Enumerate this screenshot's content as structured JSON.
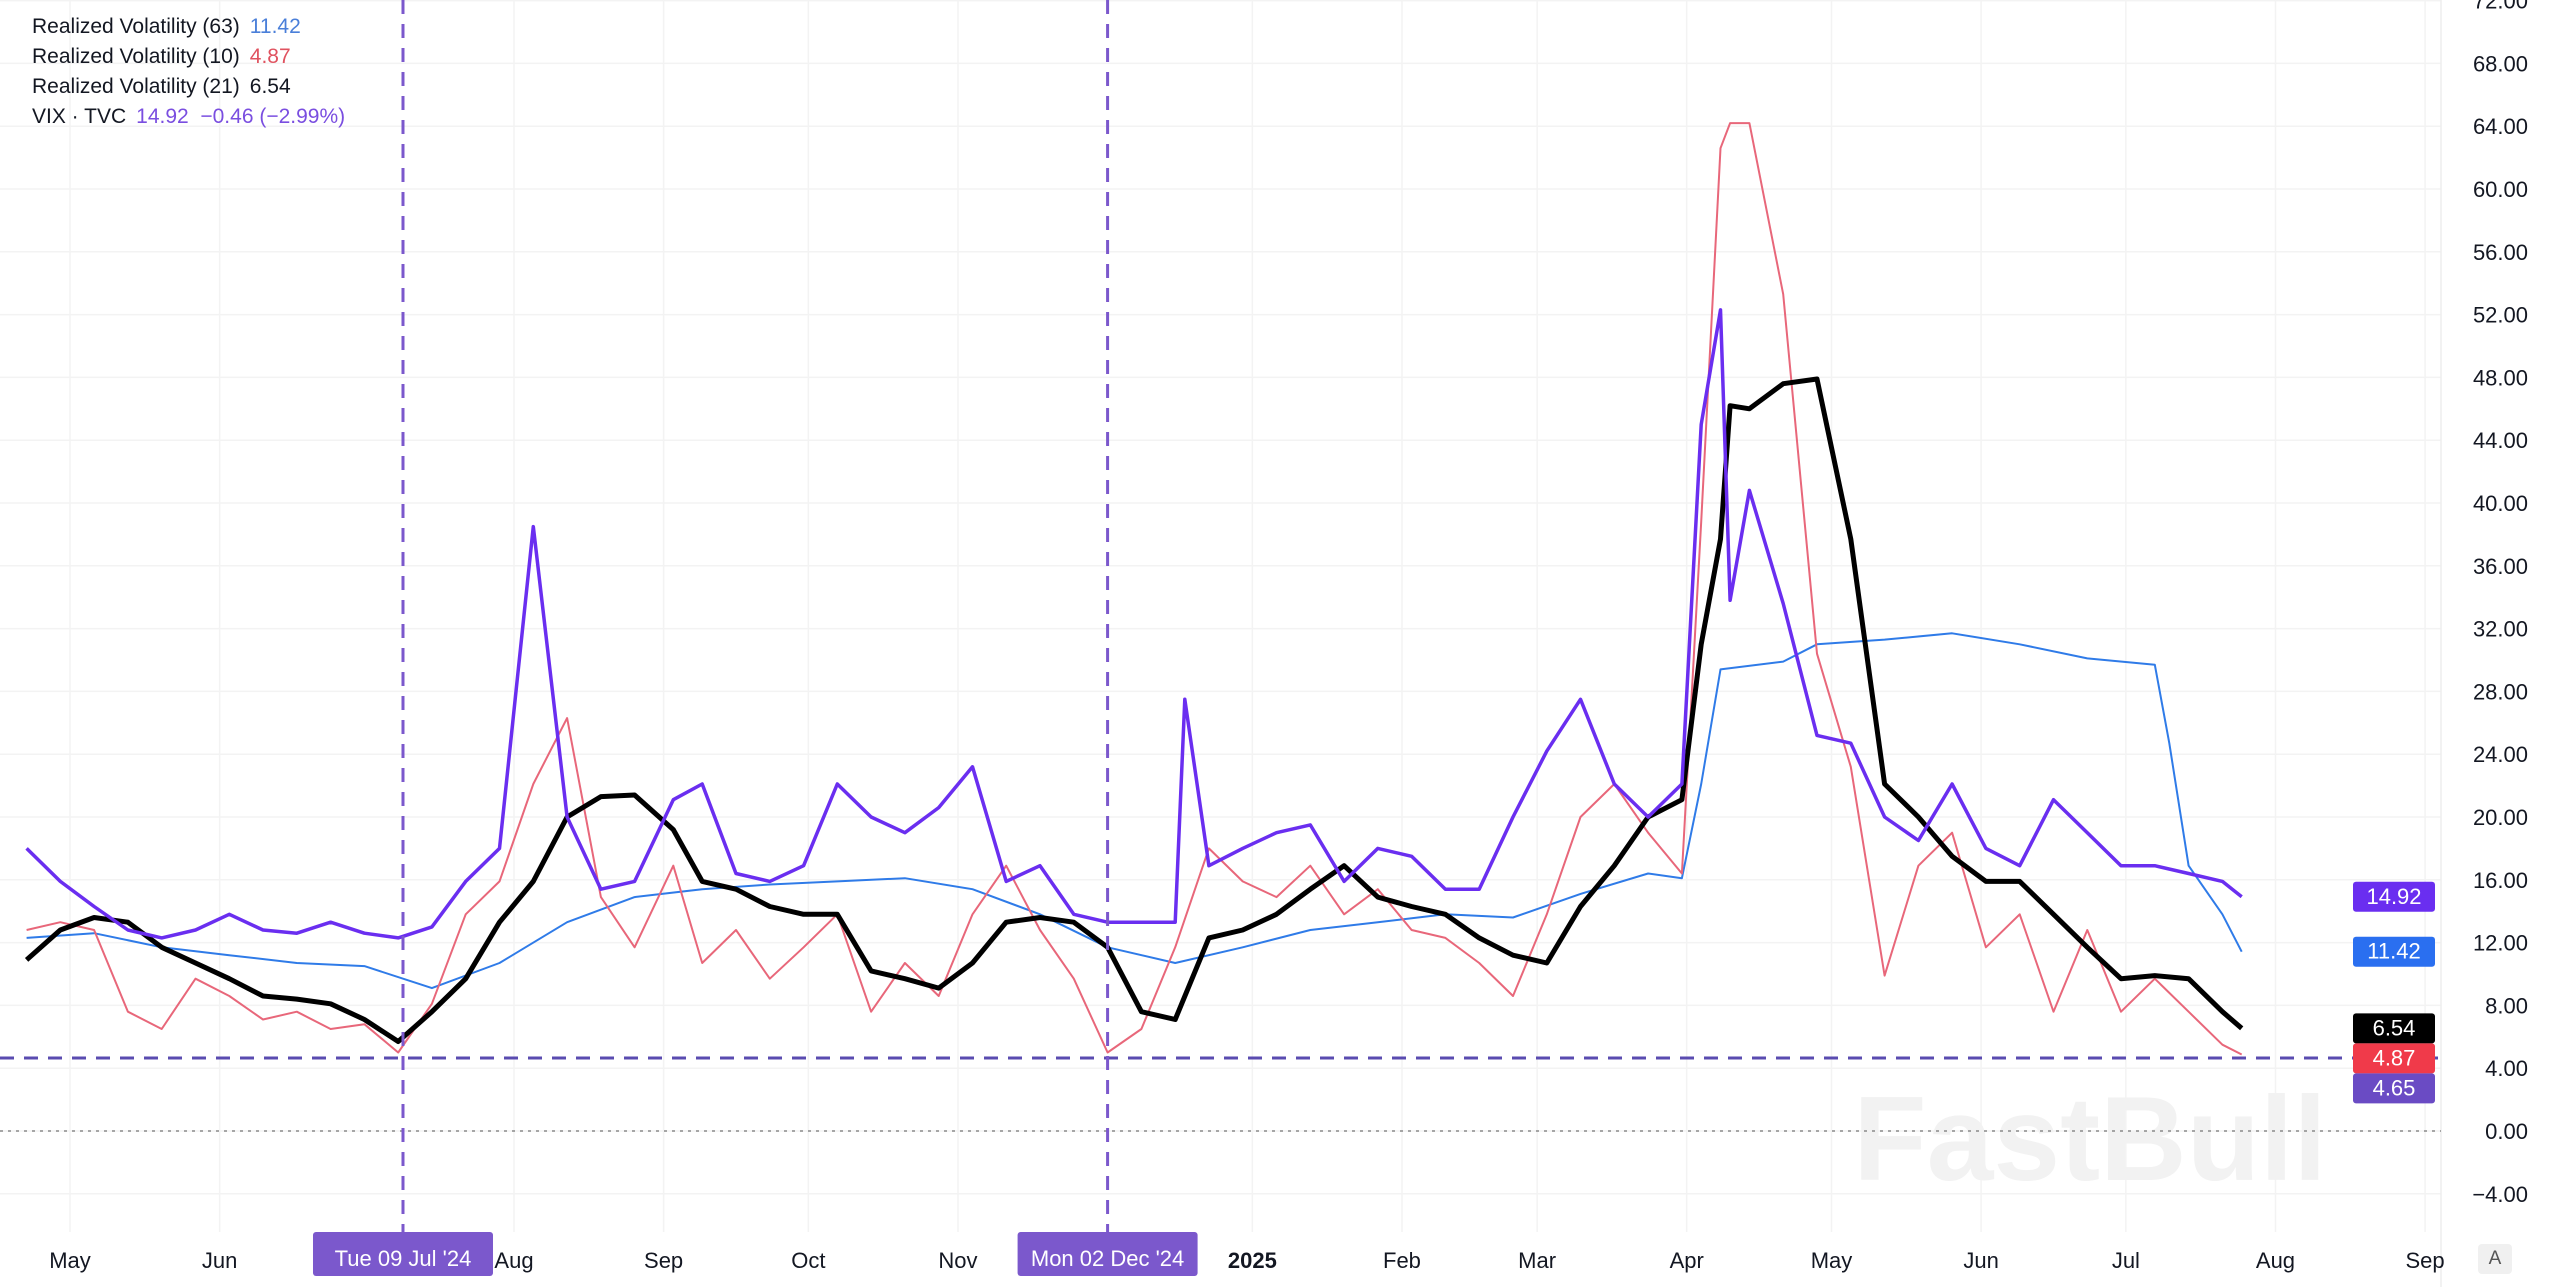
{
  "chart_data": {
    "type": "line",
    "y_axis": {
      "position": "right",
      "range": [
        -4,
        72
      ],
      "ticks": [
        72,
        68,
        64,
        60,
        56,
        52,
        48,
        44,
        40,
        36,
        32,
        28,
        24,
        20,
        16,
        12,
        8,
        4,
        0,
        -4
      ]
    },
    "x_axis": {
      "range": [
        "2024-04-20",
        "2025-09-10"
      ],
      "ticks": [
        {
          "label": "May",
          "date": "2024-05-01"
        },
        {
          "label": "Jun",
          "date": "2024-06-01"
        },
        {
          "label": "Aug",
          "date": "2024-08-01"
        },
        {
          "label": "Sep",
          "date": "2024-09-01"
        },
        {
          "label": "Oct",
          "date": "2024-10-01"
        },
        {
          "label": "Nov",
          "date": "2024-11-01"
        },
        {
          "label": "2025",
          "date": "2025-01-01",
          "bold": true
        },
        {
          "label": "Feb",
          "date": "2025-02-01"
        },
        {
          "label": "Mar",
          "date": "2025-03-01"
        },
        {
          "label": "Apr",
          "date": "2025-04-01"
        },
        {
          "label": "May",
          "date": "2025-05-01"
        },
        {
          "label": "Jun",
          "date": "2025-06-01"
        },
        {
          "label": "Jul",
          "date": "2025-07-01"
        },
        {
          "label": "Aug",
          "date": "2025-08-01"
        },
        {
          "label": "Sep",
          "date": "2025-09-01"
        }
      ]
    },
    "grid": true,
    "legend": "top-left",
    "dates": [
      "2024-04-22",
      "2024-04-29",
      "2024-05-06",
      "2024-05-13",
      "2024-05-20",
      "2024-05-27",
      "2024-06-03",
      "2024-06-10",
      "2024-06-17",
      "2024-06-24",
      "2024-07-01",
      "2024-07-08",
      "2024-07-15",
      "2024-07-22",
      "2024-07-29",
      "2024-08-05",
      "2024-08-12",
      "2024-08-19",
      "2024-08-26",
      "2024-09-03",
      "2024-09-09",
      "2024-09-16",
      "2024-09-23",
      "2024-09-30",
      "2024-10-07",
      "2024-10-14",
      "2024-10-21",
      "2024-10-28",
      "2024-11-04",
      "2024-11-11",
      "2024-11-18",
      "2024-11-25",
      "2024-12-02",
      "2024-12-09",
      "2024-12-16",
      "2024-12-23",
      "2024-12-30",
      "2025-01-06",
      "2025-01-13",
      "2025-01-20",
      "2025-01-27",
      "2025-02-03",
      "2025-02-10",
      "2025-02-17",
      "2025-02-24",
      "2025-03-03",
      "2025-03-10",
      "2025-03-17",
      "2025-03-24",
      "2025-03-31",
      "2025-04-04",
      "2025-04-08",
      "2025-04-10",
      "2025-04-14",
      "2025-04-21",
      "2025-04-28",
      "2025-05-05",
      "2025-05-12",
      "2025-05-19",
      "2025-05-26",
      "2025-06-02",
      "2025-06-09",
      "2025-06-16",
      "2025-06-23",
      "2025-06-30",
      "2025-07-07",
      "2025-07-14",
      "2025-07-21",
      "2025-07-25"
    ],
    "series": [
      {
        "name": "Realized Volatility (63)",
        "color": "#2f7be8",
        "width": 2,
        "last": 11.42,
        "points": [
          [
            "2024-04-22",
            12.3
          ],
          [
            "2024-05-06",
            12.6
          ],
          [
            "2024-05-20",
            11.7
          ],
          [
            "2024-06-03",
            11.2
          ],
          [
            "2024-06-17",
            10.7
          ],
          [
            "2024-07-01",
            10.5
          ],
          [
            "2024-07-15",
            9.1
          ],
          [
            "2024-07-29",
            10.7
          ],
          [
            "2024-08-12",
            13.3
          ],
          [
            "2024-08-26",
            14.9
          ],
          [
            "2024-09-09",
            15.4
          ],
          [
            "2024-09-23",
            15.7
          ],
          [
            "2024-10-07",
            15.9
          ],
          [
            "2024-10-21",
            16.1
          ],
          [
            "2024-11-04",
            15.4
          ],
          [
            "2024-11-18",
            13.8
          ],
          [
            "2024-12-02",
            11.7
          ],
          [
            "2024-12-16",
            10.7
          ],
          [
            "2024-12-30",
            11.7
          ],
          [
            "2025-01-13",
            12.8
          ],
          [
            "2025-01-27",
            13.3
          ],
          [
            "2025-02-10",
            13.8
          ],
          [
            "2025-02-24",
            13.6
          ],
          [
            "2025-03-10",
            15.1
          ],
          [
            "2025-03-24",
            16.4
          ],
          [
            "2025-03-31",
            16.1
          ],
          [
            "2025-04-04",
            22.1
          ],
          [
            "2025-04-08",
            29.4
          ],
          [
            "2025-04-21",
            29.9
          ],
          [
            "2025-04-28",
            31.0
          ],
          [
            "2025-05-12",
            31.3
          ],
          [
            "2025-05-26",
            31.7
          ],
          [
            "2025-06-09",
            31.0
          ],
          [
            "2025-06-23",
            30.1
          ],
          [
            "2025-07-07",
            29.7
          ],
          [
            "2025-07-10",
            24.7
          ],
          [
            "2025-07-14",
            16.9
          ],
          [
            "2025-07-21",
            13.8
          ],
          [
            "2025-07-25",
            11.42
          ]
        ]
      },
      {
        "name": "Realized Volatility (10)",
        "color": "#e8677a",
        "width": 2,
        "last": 4.87,
        "values": [
          12.8,
          13.3,
          12.8,
          7.6,
          6.5,
          9.7,
          8.6,
          7.1,
          7.6,
          6.5,
          6.8,
          5.0,
          8.1,
          13.8,
          15.9,
          22.1,
          26.3,
          14.9,
          11.7,
          16.9,
          10.7,
          12.8,
          9.7,
          11.7,
          13.8,
          7.6,
          10.7,
          8.6,
          13.8,
          16.9,
          12.8,
          9.7,
          5.0,
          6.5,
          11.7,
          18.0,
          15.9,
          14.9,
          16.9,
          13.8,
          15.4,
          12.8,
          12.3,
          10.7,
          8.6,
          13.8,
          20.0,
          22.1,
          19.0,
          16.4,
          38.8,
          62.6,
          64.2,
          64.2,
          53.3,
          30.4,
          23.2,
          9.9,
          16.9,
          19.0,
          11.7,
          13.8,
          7.6,
          12.8,
          7.6,
          9.7,
          7.6,
          5.5,
          4.87
        ]
      },
      {
        "name": "Realized Volatility (21)",
        "color": "#000000",
        "width": 5,
        "last": 6.54,
        "values": [
          10.9,
          12.8,
          13.6,
          13.3,
          11.7,
          10.7,
          9.7,
          8.6,
          8.4,
          8.1,
          7.1,
          5.7,
          7.6,
          9.7,
          13.3,
          15.9,
          20.0,
          21.3,
          21.4,
          19.2,
          15.9,
          15.4,
          14.3,
          13.8,
          13.8,
          10.2,
          9.7,
          9.1,
          10.7,
          13.3,
          13.6,
          13.3,
          11.7,
          7.6,
          7.1,
          12.3,
          12.8,
          13.8,
          15.4,
          16.9,
          14.9,
          14.3,
          13.8,
          12.3,
          11.2,
          10.7,
          14.3,
          16.9,
          20.0,
          21.1,
          31.0,
          37.7,
          46.2,
          46.0,
          47.6,
          47.9,
          37.7,
          22.1,
          20.0,
          17.5,
          15.9,
          15.9,
          13.8,
          11.7,
          9.7,
          9.9,
          9.7,
          7.6,
          6.54
        ]
      },
      {
        "name": "VIX · TVC",
        "color": "#6a2ef0",
        "width": 3.5,
        "last": 14.92,
        "change": "−0.46 (−2.99%)",
        "values": [
          18.0,
          15.9,
          14.3,
          12.8,
          12.3,
          12.8,
          13.8,
          12.8,
          12.6,
          13.3,
          12.6,
          12.3,
          13.0,
          15.9,
          18.0,
          38.5,
          20.0,
          15.4,
          15.9,
          21.1,
          22.1,
          16.4,
          15.9,
          16.9,
          22.1,
          20.0,
          19.0,
          20.6,
          23.2,
          15.9,
          16.9,
          13.8,
          13.3,
          13.3,
          13.3,
          16.9,
          18.0,
          19.0,
          19.5,
          15.9,
          18.0,
          17.5,
          15.4,
          15.4,
          20.0,
          24.2,
          27.5,
          22.1,
          20.0,
          22.1,
          45.0,
          52.3,
          33.8,
          40.8,
          33.6,
          25.2,
          24.7,
          20.0,
          18.5,
          22.1,
          18.0,
          16.9,
          21.1,
          19.0,
          16.9,
          16.9,
          16.4,
          15.9,
          14.92
        ],
        "extra_points": [
          [
            "2024-12-18",
            27.5
          ]
        ]
      }
    ],
    "price_badges": [
      {
        "value": 14.92,
        "label": "14.92",
        "color": "#6a2ef0"
      },
      {
        "value": 11.42,
        "label": "11.42",
        "color": "#2a6ff0"
      },
      {
        "value": 6.54,
        "label": "6.54",
        "color": "#000000"
      },
      {
        "value": 4.87,
        "label": "4.87",
        "color": "#f03a4a"
      },
      {
        "value": 4.65,
        "label": "4.65",
        "color": "#6a4bc4"
      }
    ],
    "horizontal_line": {
      "value": 4.65,
      "color": "#5a4bb0",
      "style": "dashed"
    },
    "zero_line": {
      "value": 0,
      "style": "dotted"
    },
    "vertical_lines": [
      {
        "date": "2024-07-09",
        "label": "Tue 09 Jul '24",
        "color": "#7b58cc"
      },
      {
        "date": "2024-12-02",
        "label": "Mon 02 Dec '24",
        "color": "#7b58cc"
      }
    ],
    "watermark": "FastBull"
  },
  "legend": {
    "rows": [
      {
        "label": "Realized Volatility (63)",
        "value": "11.42",
        "color": "#4a7fd9"
      },
      {
        "label": "Realized Volatility (10)",
        "value": "4.87",
        "color": "#e0525f"
      },
      {
        "label": "Realized Volatility (21)",
        "value": "6.54",
        "color": "#131722"
      },
      {
        "label": "VIX · TVC",
        "value": "14.92  −0.46 (−2.99%)",
        "color": "#7a4ee0"
      }
    ]
  },
  "axis_button": "A"
}
